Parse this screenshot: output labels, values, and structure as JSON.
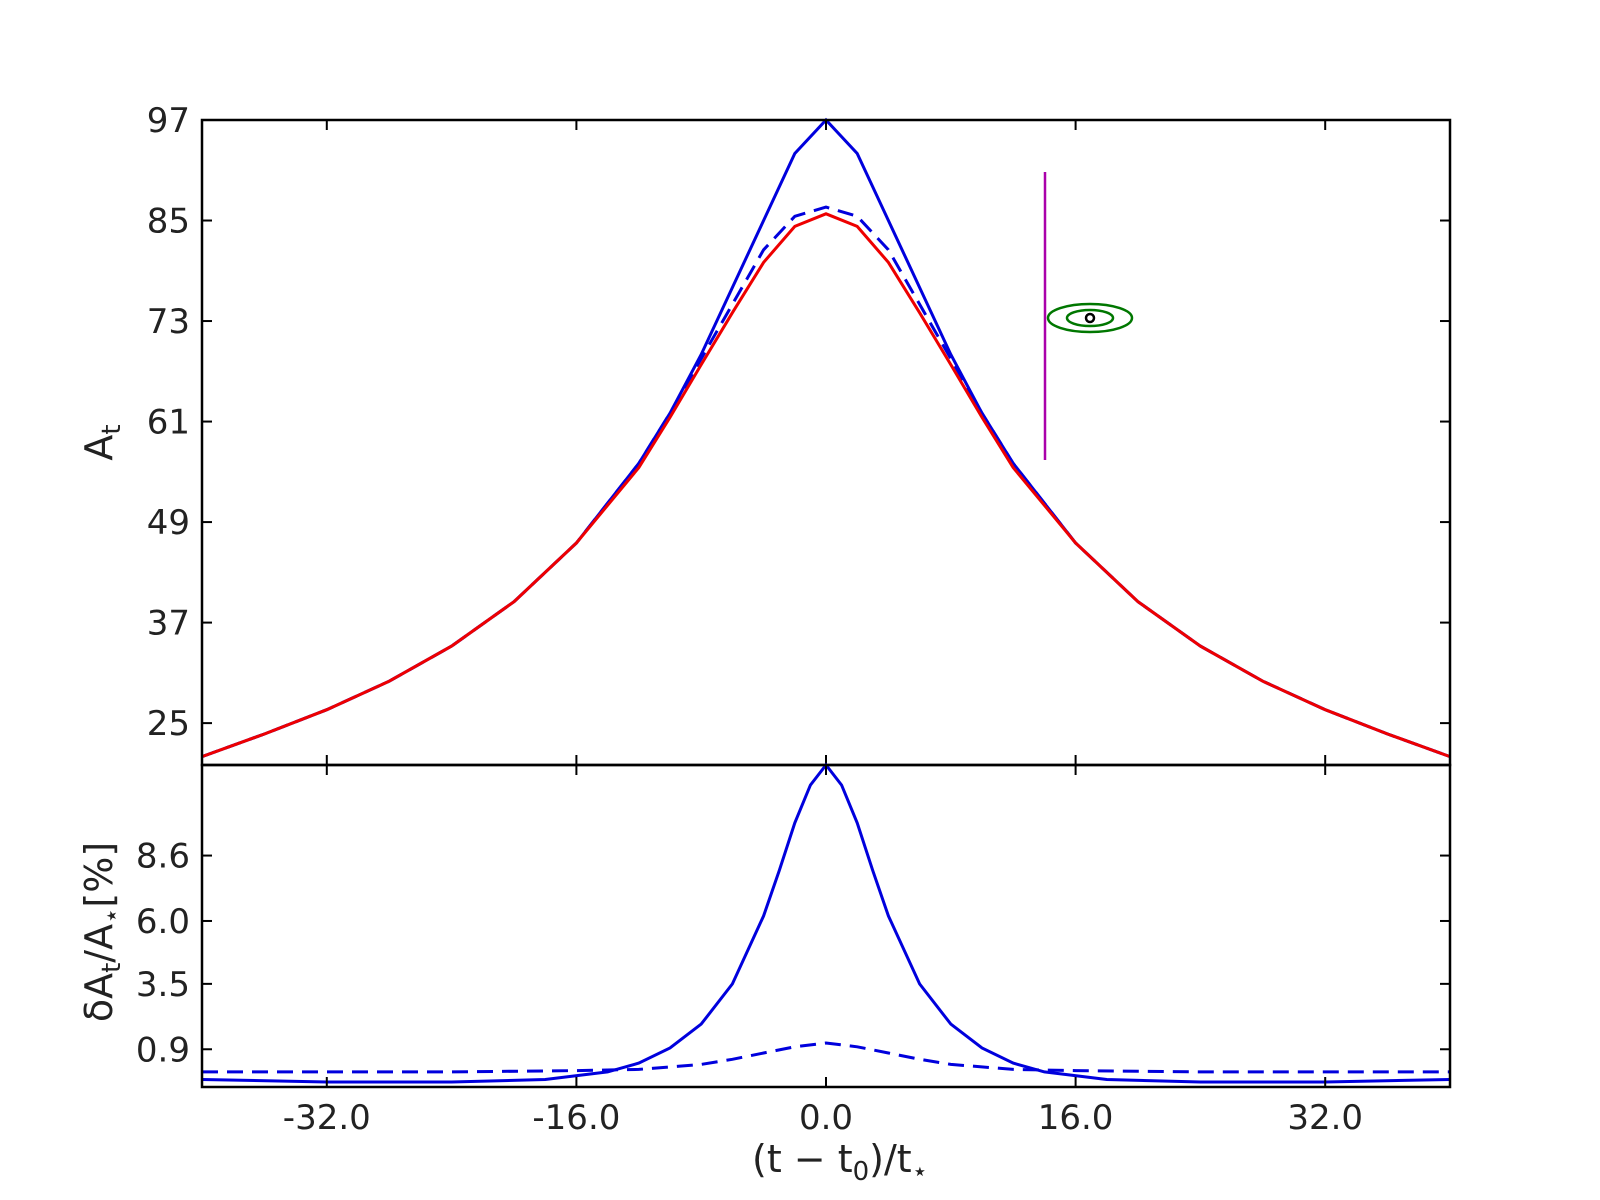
{
  "chart_data": [
    {
      "type": "line",
      "panel": "top",
      "ylabel": "A_t",
      "ylabel_main": "A",
      "ylabel_sub": "t",
      "xlim": [
        -40,
        40
      ],
      "ylim": [
        20,
        97
      ],
      "yticks": [
        25,
        37,
        49,
        61,
        73,
        85,
        97
      ],
      "ytick_labels": [
        "25",
        "37",
        "49",
        "61",
        "73",
        "85",
        "97"
      ],
      "xticks": [
        -32,
        -16,
        0,
        16,
        32
      ],
      "grid": false,
      "series": [
        {
          "style": "solid",
          "color": "#0000dd",
          "x": [
            -40,
            -36,
            -32,
            -28,
            -24,
            -20,
            -16,
            -12,
            -10,
            -8,
            -6,
            -4,
            -2,
            0,
            2,
            4,
            6,
            8,
            10,
            12,
            16,
            20,
            24,
            28,
            32,
            36,
            40
          ],
          "y": [
            21,
            23.7,
            26.6,
            30,
            34.2,
            39.5,
            46.5,
            56,
            62,
            69,
            77,
            85,
            93,
            97,
            93,
            85,
            77,
            69,
            62,
            56,
            46.5,
            39.5,
            34.2,
            30,
            26.6,
            23.7,
            21
          ]
        },
        {
          "style": "dashed",
          "color": "#0000dd",
          "x": [
            -40,
            -36,
            -32,
            -28,
            -24,
            -20,
            -16,
            -12,
            -10,
            -8,
            -6,
            -4,
            -2,
            0,
            2,
            4,
            6,
            8,
            10,
            12,
            16,
            20,
            24,
            28,
            32,
            36,
            40
          ],
          "y": [
            21,
            23.7,
            26.6,
            30,
            34.2,
            39.5,
            46.5,
            56,
            62,
            68.5,
            75,
            81.5,
            85.5,
            86.6,
            85.5,
            81.5,
            75,
            68.5,
            62,
            56,
            46.5,
            39.5,
            34.2,
            30,
            26.6,
            23.7,
            21
          ]
        },
        {
          "style": "solid",
          "color": "#ee0000",
          "x": [
            -40,
            -36,
            -32,
            -28,
            -24,
            -20,
            -16,
            -12,
            -10,
            -8,
            -6,
            -4,
            -2,
            0,
            2,
            4,
            6,
            8,
            10,
            12,
            16,
            20,
            24,
            28,
            32,
            36,
            40
          ],
          "y": [
            21,
            23.7,
            26.6,
            30,
            34.2,
            39.5,
            46.5,
            55.5,
            61.5,
            67.8,
            74,
            80,
            84.3,
            85.8,
            84.3,
            80,
            74,
            67.8,
            61.5,
            55.5,
            46.5,
            39.5,
            34.2,
            30,
            26.6,
            23.7,
            21
          ]
        }
      ],
      "inset": {
        "bar_color": "#aa00aa",
        "ellipse_color": "#007700",
        "dot_color": "#000000"
      }
    },
    {
      "type": "line",
      "panel": "bottom",
      "ylabel": "δA_t/A_⋆[%]",
      "ylabel_main": "δA",
      "ylabel_sub": "t",
      "ylabel_mid": "/A",
      "ylabel_sub2": "⋆",
      "ylabel_end": "[%]",
      "xlabel": "(t − t_0)/t_⋆",
      "xlabel_parts": [
        "(t − t",
        "0",
        ")/t",
        "⋆"
      ],
      "xlim": [
        -40,
        40
      ],
      "ylim": [
        -0.6,
        12.2
      ],
      "yticks": [
        0.9,
        3.5,
        6.0,
        8.6
      ],
      "ytick_labels": [
        "0.9",
        "3.5",
        "6.0",
        "8.6"
      ],
      "xticks": [
        -32,
        -16,
        0,
        16,
        32
      ],
      "xtick_labels": [
        "-32.0",
        "-16.0",
        "0.0",
        "16.0",
        "32.0"
      ],
      "grid": false,
      "series": [
        {
          "style": "solid",
          "color": "#0000dd",
          "x": [
            -40,
            -32,
            -24,
            -18,
            -14,
            -12,
            -10,
            -8,
            -6,
            -4,
            -3,
            -2,
            -1,
            0,
            1,
            2,
            3,
            4,
            6,
            8,
            10,
            12,
            14,
            18,
            24,
            32,
            40
          ],
          "y": [
            -0.3,
            -0.4,
            -0.4,
            -0.3,
            0.0,
            0.35,
            0.95,
            1.9,
            3.5,
            6.2,
            8.0,
            9.9,
            11.4,
            12.2,
            11.4,
            9.9,
            8.0,
            6.2,
            3.5,
            1.9,
            0.95,
            0.35,
            0.0,
            -0.3,
            -0.4,
            -0.4,
            -0.3
          ]
        },
        {
          "style": "dashed",
          "color": "#0000dd",
          "x": [
            -40,
            -24,
            -16,
            -12,
            -8,
            -6,
            -4,
            -2,
            0,
            2,
            4,
            6,
            8,
            12,
            16,
            24,
            40
          ],
          "y": [
            0.0,
            0.0,
            0.05,
            0.1,
            0.3,
            0.5,
            0.75,
            1.0,
            1.15,
            1.0,
            0.75,
            0.5,
            0.3,
            0.1,
            0.05,
            0.0,
            0.0
          ]
        }
      ]
    }
  ]
}
